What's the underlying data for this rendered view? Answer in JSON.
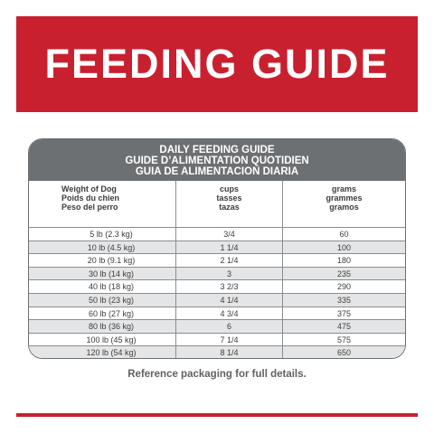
{
  "banner": {
    "title": "FEEDING GUIDE"
  },
  "table": {
    "title_lines": [
      "DAILY FEEDING GUIDE",
      "GUIDE D’ALIMENTATION QUOTIDIEN",
      "GUIA DE ALIMENTACION DIARIA"
    ],
    "col_weight": [
      "Weight of Dog",
      "Poids du chien",
      "Peso del perro"
    ],
    "col_cups": [
      "cups",
      "tasses",
      "tazas"
    ],
    "col_grams": [
      "grams",
      "grammes",
      "gramos"
    ],
    "rows": [
      {
        "weight": "5 lb (2.3 kg)",
        "cups": "3/4",
        "grams": "60"
      },
      {
        "weight": "10 lb (4.5 kg)",
        "cups": "1 1/4",
        "grams": "100"
      },
      {
        "weight": "20 lb (9.1 kg)",
        "cups": "2 1/4",
        "grams": "180"
      },
      {
        "weight": "30 lb (14 kg)",
        "cups": "3",
        "grams": "235"
      },
      {
        "weight": "40 lb (18 kg)",
        "cups": "3 2/3",
        "grams": "290"
      },
      {
        "weight": "50 lb (23 kg)",
        "cups": "4 1/4",
        "grams": "335"
      },
      {
        "weight": "60 lb (27 kg)",
        "cups": "4 3/4",
        "grams": "375"
      },
      {
        "weight": "80 lb (36 kg)",
        "cups": "6",
        "grams": "475"
      },
      {
        "weight": "100 lb (45 kg)",
        "cups": "7 1/4",
        "grams": "575"
      },
      {
        "weight": "120 lb (54 kg)",
        "cups": "8 1/4",
        "grams": "650"
      }
    ]
  },
  "footer": {
    "note": "Reference packaging for full details."
  },
  "colors": {
    "brand_red": "#c8202f",
    "header_gray": "#6d7073",
    "row_shade": "#e4e5e6"
  }
}
